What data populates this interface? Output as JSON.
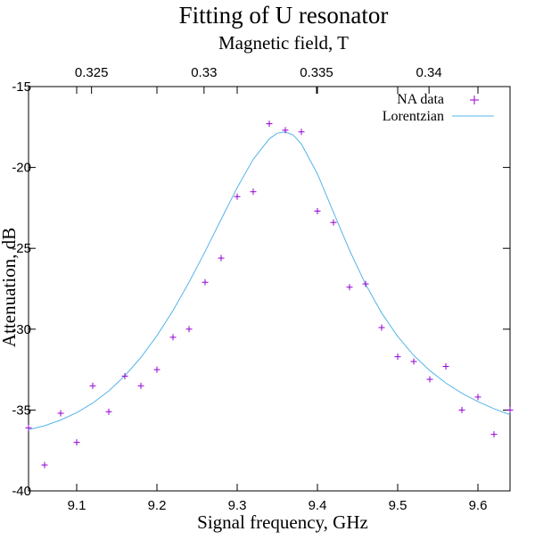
{
  "chart_data": {
    "type": "scatter",
    "title": "Fitting of U resonator",
    "xlabel": "Signal frequency, GHz",
    "ylabel": "Attenuation, dB",
    "x2label": "Magnetic field, T",
    "xlim": [
      9.04,
      9.64
    ],
    "ylim": [
      -40,
      -15
    ],
    "x2lim": [
      0.3222,
      0.3436
    ],
    "xticks": [
      "9.1",
      "9.2",
      "9.3",
      "9.4",
      "9.5",
      "9.6"
    ],
    "yticks": [
      "-15",
      "-20",
      "-25",
      "-30",
      "-35",
      "-40"
    ],
    "x2ticks": [
      "0.325",
      "0.33",
      "0.335",
      "0.34"
    ],
    "legend_position": "top-right",
    "grid": false,
    "series": [
      {
        "name": "NA data",
        "kind": "points",
        "color": "#9400d3",
        "marker": "plus",
        "points": [
          [
            9.04,
            -36.1
          ],
          [
            9.06,
            -38.4
          ],
          [
            9.08,
            -35.2
          ],
          [
            9.1,
            -37.0
          ],
          [
            9.12,
            -33.5
          ],
          [
            9.14,
            -35.1
          ],
          [
            9.16,
            -32.9
          ],
          [
            9.18,
            -33.5
          ],
          [
            9.2,
            -32.5
          ],
          [
            9.22,
            -30.5
          ],
          [
            9.24,
            -30.0
          ],
          [
            9.26,
            -27.1
          ],
          [
            9.28,
            -25.6
          ],
          [
            9.3,
            -21.8
          ],
          [
            9.32,
            -21.5
          ],
          [
            9.34,
            -17.3
          ],
          [
            9.36,
            -17.7
          ],
          [
            9.38,
            -17.8
          ],
          [
            9.4,
            -22.7
          ],
          [
            9.42,
            -23.4
          ],
          [
            9.44,
            -27.4
          ],
          [
            9.46,
            -27.2
          ],
          [
            9.48,
            -29.9
          ],
          [
            9.5,
            -31.7
          ],
          [
            9.52,
            -32.0
          ],
          [
            9.54,
            -33.1
          ],
          [
            9.56,
            -32.3
          ],
          [
            9.58,
            -35.0
          ],
          [
            9.6,
            -34.2
          ],
          [
            9.62,
            -36.5
          ],
          [
            9.64,
            -35.0
          ]
        ]
      },
      {
        "name": "Lorentzian",
        "kind": "curve",
        "color": "#56b4e9",
        "points": [
          [
            9.04,
            -36.21
          ],
          [
            9.06,
            -35.97
          ],
          [
            9.08,
            -35.62
          ],
          [
            9.1,
            -35.16
          ],
          [
            9.12,
            -34.57
          ],
          [
            9.14,
            -33.82
          ],
          [
            9.16,
            -32.88
          ],
          [
            9.18,
            -31.75
          ],
          [
            9.2,
            -30.4
          ],
          [
            9.22,
            -28.85
          ],
          [
            9.24,
            -27.1
          ],
          [
            9.26,
            -25.2
          ],
          [
            9.28,
            -23.21
          ],
          [
            9.3,
            -21.25
          ],
          [
            9.32,
            -19.5
          ],
          [
            9.34,
            -18.23
          ],
          [
            9.35,
            -17.88
          ],
          [
            9.36,
            -17.8
          ],
          [
            9.37,
            -18.0
          ],
          [
            9.38,
            -18.55
          ],
          [
            9.4,
            -20.4
          ],
          [
            9.42,
            -22.78
          ],
          [
            9.44,
            -25.12
          ],
          [
            9.46,
            -27.22
          ],
          [
            9.48,
            -29.0
          ],
          [
            9.5,
            -30.45
          ],
          [
            9.52,
            -31.62
          ],
          [
            9.54,
            -32.56
          ],
          [
            9.56,
            -33.33
          ],
          [
            9.58,
            -33.96
          ],
          [
            9.6,
            -34.48
          ],
          [
            9.62,
            -34.92
          ],
          [
            9.64,
            -35.29
          ]
        ]
      }
    ]
  }
}
